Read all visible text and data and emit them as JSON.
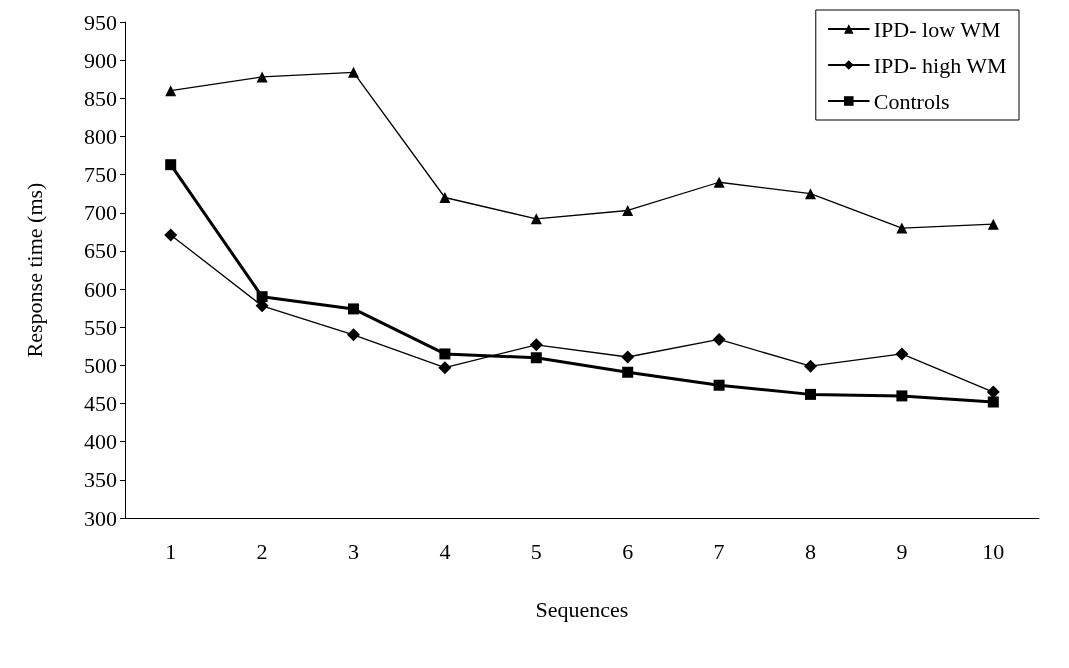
{
  "chart_data": {
    "type": "line",
    "xlabel": "Sequences",
    "ylabel": "Response time (ms)",
    "categories": [
      "1",
      "2",
      "3",
      "4",
      "5",
      "6",
      "7",
      "8",
      "9",
      "10"
    ],
    "series": [
      {
        "name": "IPD- low WM",
        "color": "#000000",
        "marker": "triangle",
        "values": [
          860,
          878,
          884,
          720,
          692,
          703,
          740,
          725,
          680,
          685
        ]
      },
      {
        "name": "IPD- high WM",
        "color": "#000000",
        "marker": "diamond",
        "values": [
          671,
          578,
          540,
          497,
          527,
          511,
          534,
          499,
          515,
          465
        ]
      },
      {
        "name": "Controls",
        "color": "#000000",
        "marker": "square",
        "values": [
          763,
          590,
          574,
          515,
          510,
          491,
          474,
          462,
          460,
          452
        ]
      }
    ],
    "ylim": [
      300,
      950
    ],
    "yticks": [
      300,
      350,
      400,
      450,
      500,
      550,
      600,
      650,
      700,
      750,
      800,
      850,
      900,
      950
    ],
    "grid": false,
    "legend": "top right",
    "line_style": "solid"
  }
}
